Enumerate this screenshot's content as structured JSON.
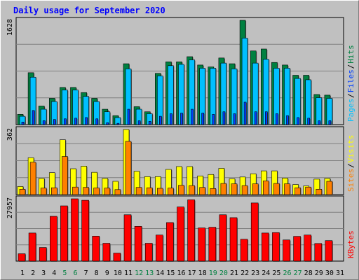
{
  "colors": {
    "background": "#c0c0c0",
    "plot_background": "#c0c0c0",
    "title": "#0000ff",
    "grid": "#7f7f7f",
    "hits": "#008040",
    "hits_light": "#1a9a62",
    "files": "#00c0ff",
    "pages": "#0040ff",
    "visits": "#ffff00",
    "sites": "#ff8000",
    "kbytes": "#ff0000",
    "weekend_label": "#008040",
    "weekday_label": "#000000"
  },
  "chart_data": {
    "type": "bar",
    "title": "Daily usage for September 2020",
    "categories": [
      "1",
      "2",
      "3",
      "4",
      "5",
      "6",
      "7",
      "8",
      "9",
      "10",
      "11",
      "12",
      "13",
      "14",
      "15",
      "16",
      "17",
      "18",
      "19",
      "20",
      "21",
      "22",
      "23",
      "24",
      "25",
      "26",
      "27",
      "28",
      "29",
      "30",
      "31"
    ],
    "weekend_days": [
      "5",
      "6",
      "12",
      "13",
      "19",
      "20",
      "26",
      "27"
    ],
    "panels": [
      {
        "id": "hits-files-pages",
        "ymax": 1628,
        "ymax_label": "1628",
        "legend": [
          {
            "label": "Hits",
            "color": "#008040"
          },
          {
            "label": "/",
            "color": "#000000"
          },
          {
            "label": "Files",
            "color": "#0040ff"
          },
          {
            "label": "/",
            "color": "#000000"
          },
          {
            "label": "Pages",
            "color": "#00c0ff"
          }
        ],
        "series": [
          {
            "name": "Hits",
            "color": "#008040",
            "values": [
              160,
              810,
              290,
              410,
              580,
              580,
              500,
              410,
              240,
              140,
              950,
              280,
              200,
              800,
              980,
              980,
              1060,
              930,
              900,
              1040,
              950,
              1628,
              1150,
              1180,
              970,
              930,
              770,
              770,
              470,
              460,
              0
            ]
          },
          {
            "name": "Files",
            "color": "#00c0ff",
            "values": [
              130,
              740,
              240,
              360,
              540,
              540,
              440,
              360,
              200,
              110,
              870,
              240,
              170,
              760,
              920,
              940,
              1010,
              880,
              880,
              960,
              870,
              1350,
              960,
              1020,
              880,
              880,
              720,
              700,
              420,
              410,
              0
            ]
          },
          {
            "name": "Pages",
            "color": "#0040ff",
            "values": [
              40,
              220,
              60,
              80,
              90,
              100,
              110,
              90,
              30,
              20,
              240,
              60,
              50,
              130,
              170,
              180,
              240,
              180,
              160,
              200,
              170,
              350,
              200,
              200,
              170,
              140,
              110,
              100,
              60,
              60,
              0
            ]
          }
        ]
      },
      {
        "id": "visits-sites",
        "ymax": 362,
        "ymax_label": "362",
        "legend": [
          {
            "label": "Visits",
            "color": "#ffff00"
          },
          {
            "label": "/",
            "color": "#000000"
          },
          {
            "label": "Sites",
            "color": "#ff8000"
          }
        ],
        "series": [
          {
            "name": "Visits",
            "color": "#ffff00",
            "values": [
              45,
              205,
              90,
              122,
              305,
              144,
              158,
              124,
              90,
              74,
              362,
              130,
              100,
              100,
              140,
              156,
              156,
              104,
              112,
              146,
              88,
              98,
              116,
              132,
              132,
              92,
              56,
              48,
              86,
              90,
              0
            ]
          },
          {
            "name": "Sites",
            "color": "#ff8000",
            "values": [
              30,
              180,
              36,
              38,
              212,
              42,
              40,
              37,
              36,
              28,
              296,
              40,
              38,
              35,
              36,
              52,
              50,
              40,
              34,
              62,
              60,
              50,
              60,
              76,
              62,
              60,
              38,
              42,
              30,
              74,
              0
            ]
          }
        ]
      },
      {
        "id": "kbytes",
        "ymax": 27957,
        "ymax_label": "27957",
        "legend": [
          {
            "label": "KBytes",
            "color": "#ff0000"
          }
        ],
        "series": [
          {
            "name": "KBytes",
            "color": "#ff0000",
            "values": [
              3300,
              12600,
              6100,
              20100,
              24800,
              27957,
              27300,
              11200,
              8000,
              3600,
              20800,
              15600,
              8000,
              11700,
              17300,
              24300,
              27500,
              14900,
              15200,
              20800,
              19500,
              9800,
              26100,
              12600,
              12800,
              9500,
              11100,
              11700,
              7900,
              9200,
              0
            ]
          }
        ]
      }
    ],
    "grid": true,
    "legend_position": "right, vertical"
  }
}
